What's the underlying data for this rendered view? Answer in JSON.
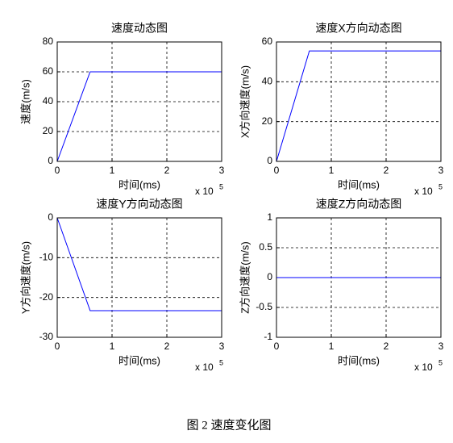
{
  "chart_data": [
    {
      "type": "line",
      "title": "速度动态图",
      "xlabel": "时间(ms)",
      "ylabel": "速度(m/s)",
      "x_multiplier": "x 10",
      "x_exponent": "5",
      "x": [
        0,
        0.6,
        3
      ],
      "values": [
        0,
        60,
        60
      ],
      "color": "#0000ff",
      "xlim": [
        0,
        3
      ],
      "xticks": [
        0,
        1,
        2,
        3
      ],
      "ylim": [
        0,
        80
      ],
      "yticks": [
        0,
        20,
        40,
        60,
        80
      ],
      "grid": true
    },
    {
      "type": "line",
      "title": "速度X方向动态图",
      "xlabel": "时间(ms)",
      "ylabel": "X方向速度(m/s)",
      "x_multiplier": "x 10",
      "x_exponent": "5",
      "x": [
        0,
        0.6,
        3
      ],
      "values": [
        0,
        55.5,
        55.5
      ],
      "color": "#0000ff",
      "xlim": [
        0,
        3
      ],
      "xticks": [
        0,
        1,
        2,
        3
      ],
      "ylim": [
        0,
        60
      ],
      "yticks": [
        0,
        20,
        40,
        60
      ],
      "grid": true
    },
    {
      "type": "line",
      "title": "速度Y方向动态图",
      "xlabel": "时间(ms)",
      "ylabel": "Y方向速度(m/s)",
      "x_multiplier": "x 10",
      "x_exponent": "5",
      "x": [
        0,
        0.6,
        3
      ],
      "values": [
        0,
        -23.3,
        -23.3
      ],
      "color": "#0000ff",
      "xlim": [
        0,
        3
      ],
      "xticks": [
        0,
        1,
        2,
        3
      ],
      "ylim": [
        -30,
        0
      ],
      "yticks": [
        -30,
        -20,
        -10,
        0
      ],
      "grid": true
    },
    {
      "type": "line",
      "title": "速度Z方向动态图",
      "xlabel": "时间(ms)",
      "ylabel": "Z方向速度(m/s)",
      "x_multiplier": "x 10",
      "x_exponent": "5",
      "x": [
        0,
        3
      ],
      "values": [
        0,
        0
      ],
      "color": "#0000ff",
      "xlim": [
        0,
        3
      ],
      "xticks": [
        0,
        1,
        2,
        3
      ],
      "ylim": [
        -1,
        1
      ],
      "yticks": [
        -1,
        -0.5,
        0,
        0.5,
        1
      ],
      "grid": true
    }
  ],
  "caption": "图 2  速度变化图"
}
